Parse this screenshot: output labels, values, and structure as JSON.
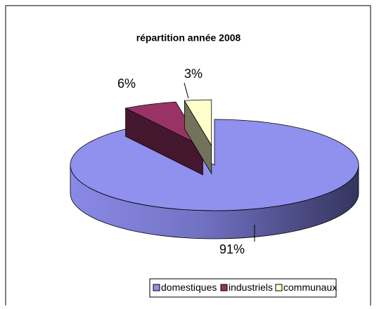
{
  "chart_data": {
    "type": "pie",
    "title": "répartition année 2008",
    "categories": [
      "domestiques",
      "industriels",
      "communaux"
    ],
    "values": [
      91,
      6,
      3
    ],
    "value_labels": [
      "91%",
      "6%",
      "3%"
    ],
    "colors": [
      "#9090ee",
      "#993366",
      "#ffffcc"
    ],
    "legend": "bottom"
  }
}
